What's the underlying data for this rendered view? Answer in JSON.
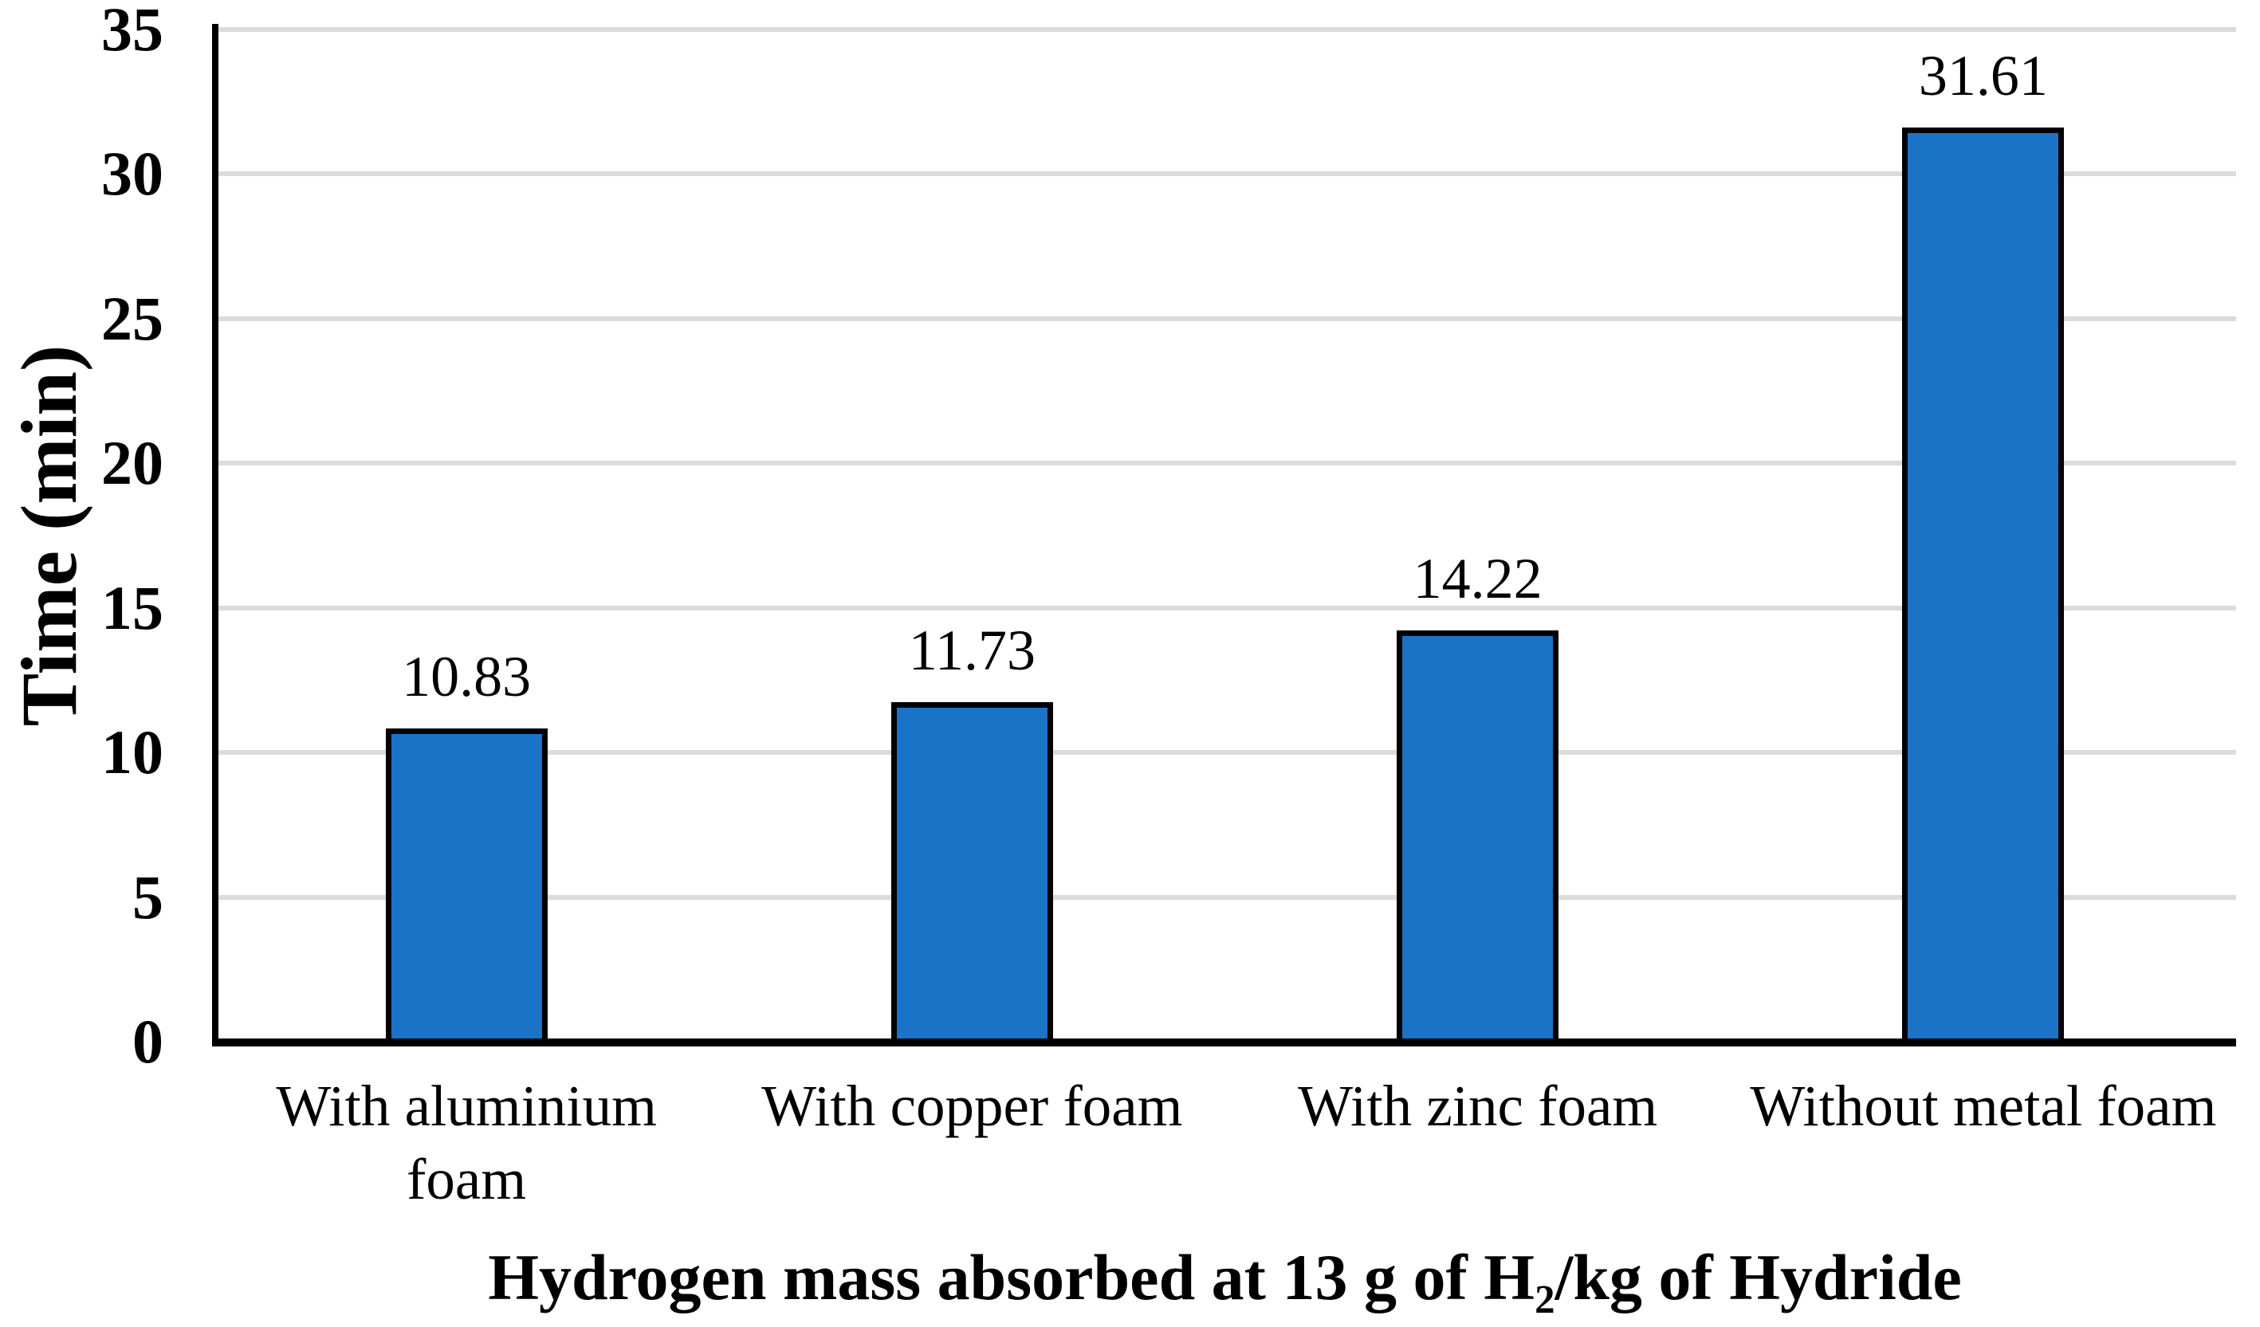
{
  "figure": {
    "background": "#ffffff",
    "text_color": "#000000"
  },
  "chart_data": {
    "type": "bar",
    "categories": [
      "With aluminium\nfoam",
      "With copper foam",
      "With zinc foam",
      "Without metal foam"
    ],
    "values": [
      10.83,
      11.73,
      14.22,
      31.61
    ],
    "value_labels": [
      "10.83",
      "11.73",
      "14.22",
      "31.61"
    ],
    "title": "Hydrogen mass absorbed at 13 g of H2/kg of Hydride",
    "title_parts": {
      "prefix": "Hydrogen mass absorbed at 13 g of H",
      "subscript": "2",
      "suffix": "/kg of Hydride"
    },
    "xlabel": "Hydrogen mass absorbed at 13 g of H2/kg of Hydride",
    "ylabel": "Time (min)",
    "ylim": [
      0,
      35
    ],
    "yticks": [
      0,
      5,
      10,
      15,
      20,
      25,
      30,
      35
    ],
    "grid": "horizontal",
    "legend": "none",
    "bar_color": "#1B73C8",
    "bar_border_color": "#000000",
    "gridline_color": "#DBDBDB",
    "axis_color": "#000000"
  }
}
